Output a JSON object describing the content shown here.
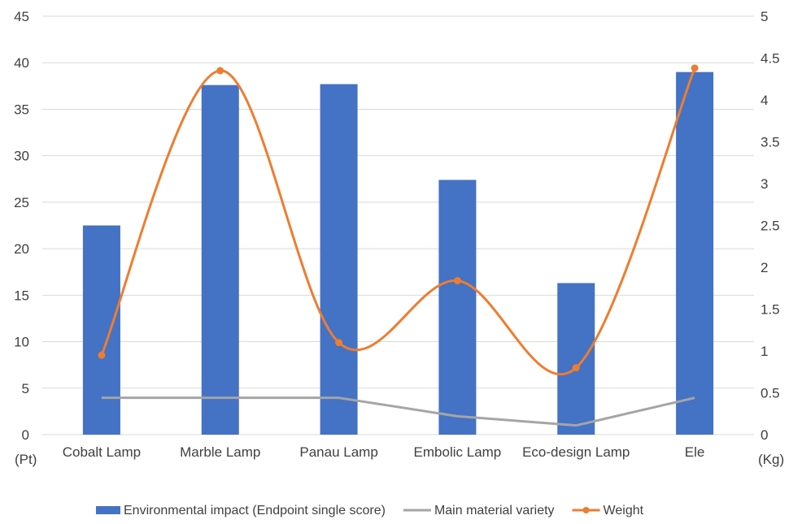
{
  "chart_data": {
    "type": "bar",
    "categories": [
      "Cobalt Lamp",
      "Marble Lamp",
      "Panau Lamp",
      "Embolic Lamp",
      "Eco-design Lamp",
      "Ele"
    ],
    "series": [
      {
        "name": "Environmental impact (Endpoint single score)",
        "type": "bar",
        "axis": "left",
        "color": "#4472c4",
        "values": [
          22.5,
          37.6,
          37.7,
          27.4,
          16.3,
          39.0
        ]
      },
      {
        "name": "Main material variety",
        "type": "line",
        "axis": "right",
        "color": "#a5a5a5",
        "values": [
          0.44,
          0.44,
          0.44,
          0.22,
          0.11,
          0.44
        ]
      },
      {
        "name": "Weight",
        "type": "line",
        "axis": "right",
        "smooth": true,
        "markers": true,
        "color": "#ed7d31",
        "values": [
          0.95,
          4.35,
          1.1,
          1.84,
          0.8,
          4.38
        ]
      }
    ],
    "y_left": {
      "ylim": [
        0,
        45
      ],
      "ticks": [
        "0",
        "5",
        "10",
        "15",
        "20",
        "25",
        "30",
        "35",
        "40",
        "45"
      ],
      "unit": "(Pt)"
    },
    "y_right": {
      "ylim": [
        0,
        5
      ],
      "ticks": [
        "0",
        "0.5",
        "1",
        "1.5",
        "2",
        "2.5",
        "3",
        "3.5",
        "4",
        "4.5",
        "5"
      ],
      "unit": "(Kg)"
    },
    "grid": "horizontal",
    "legend": "bottom"
  }
}
